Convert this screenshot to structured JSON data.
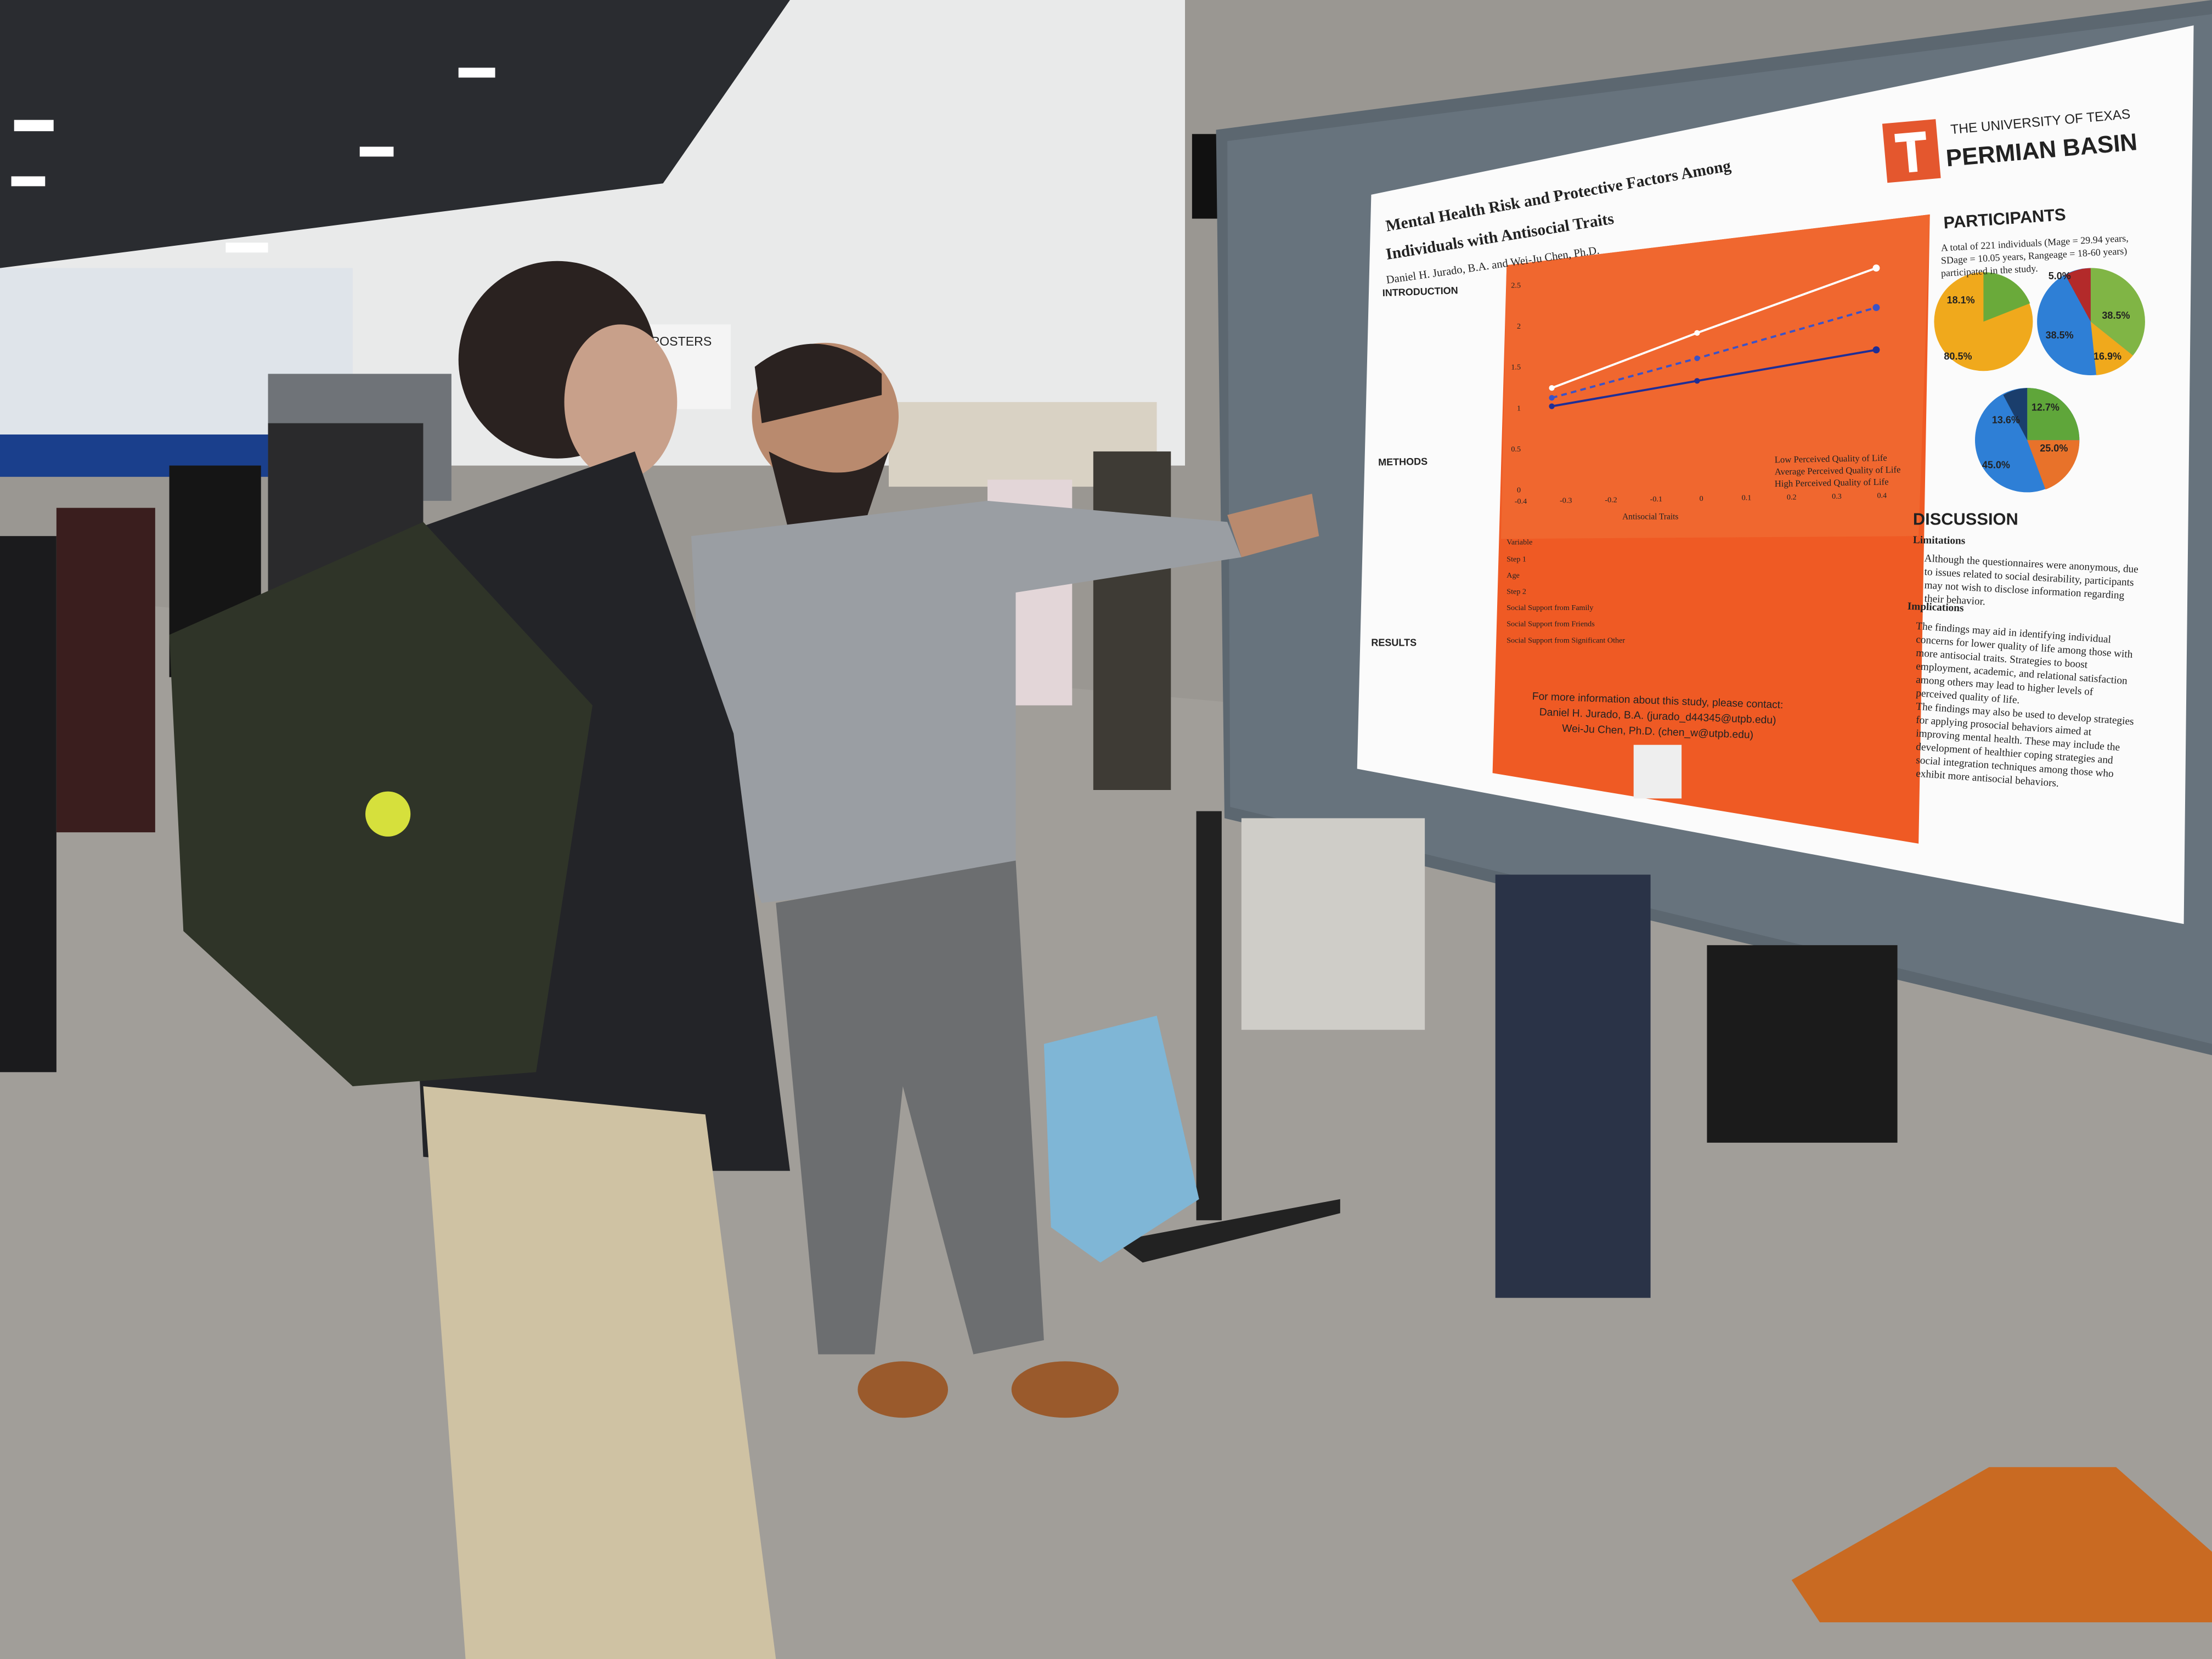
{
  "signage": {
    "booth_sign": "POSTERS"
  },
  "poster": {
    "title_lines": [
      "Mental Health Risk and Protective Factors Among",
      "Individuals with Antisocial Traits"
    ],
    "authors": "Daniel H. Jurado, B.A. and Wei-Ju Chen, Ph.D.",
    "university": {
      "line1": "THE UNIVERSITY OF TEXAS",
      "line2": "PERMIAN BASIN"
    },
    "sections": {
      "introduction": "INTRODUCTION",
      "methods": "METHODS",
      "results": "RESULTS"
    },
    "participants": {
      "heading": "PARTICIPANTS",
      "lines": [
        "A total of 221 individuals (Mage = 29.94 years,",
        "SDage = 10.05 years, Rangeage = 18-60 years)",
        "participated in the study."
      ],
      "pie_labels": [
        "18.1%",
        "80.5%",
        "5.0%",
        "38.5%",
        "38.5%",
        "16.9%",
        "13.6%",
        "12.7%",
        "25.0%",
        "45.0%"
      ]
    },
    "chart": {
      "x_label": "Antisocial Traits",
      "x_ticks": [
        "-0.4",
        "-0.3",
        "-0.2",
        "-0.1",
        "0",
        "0.1",
        "0.2",
        "0.3",
        "0.4"
      ],
      "y_ticks": [
        "2.5",
        "2",
        "1.5",
        "1",
        "0.5",
        "0"
      ],
      "legend": [
        "Low Perceived Quality of Life",
        "Average Perceived Quality of Life",
        "High Perceived Quality of Life"
      ]
    },
    "table": {
      "header": "Variable",
      "rows": [
        "Step 1",
        "Age",
        "Step 2",
        "Social Support from Family",
        "Social Support from Friends",
        "Social Support from Significant Other"
      ]
    },
    "contact": [
      "For more information about this study, please contact:",
      "Daniel H. Jurado, B.A. (jurado_d44345@utpb.edu)",
      "Wei-Ju Chen, Ph.D. (chen_w@utpb.edu)"
    ],
    "discussion": {
      "heading": "DISCUSSION",
      "limitations_heading": "Limitations",
      "limitations": [
        "Although the questionnaires were anonymous, due",
        "to issues related to social desirability, participants",
        "may not wish to disclose information regarding",
        "their behavior."
      ],
      "implications_heading": "Implications",
      "implications": [
        "The findings may aid in identifying individual",
        "concerns for lower quality of life among those with",
        "more antisocial traits. Strategies to boost",
        "employment, academic, and relational satisfaction",
        "among others may lead to higher levels of",
        "perceived quality of life.",
        "The findings may also be used to develop strategies",
        "for applying prosocial behaviors aimed at",
        "improving mental health. These may include the",
        "development of healthier coping strategies and",
        "social integration techniques among those who",
        "exhibit more antisocial behaviors."
      ]
    }
  }
}
